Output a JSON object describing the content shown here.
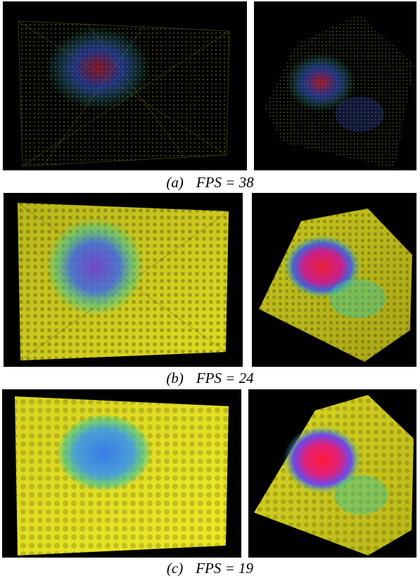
{
  "figure": {
    "rows": [
      {
        "id": "a",
        "tag": "(a)",
        "metric": "FPS = 38",
        "fps": 38,
        "render_style": "points"
      },
      {
        "id": "b",
        "tag": "(b)",
        "metric": "FPS = 24",
        "fps": 24,
        "render_style": "small-spheres"
      },
      {
        "id": "c",
        "tag": "(c)",
        "metric": "FPS = 19",
        "fps": 19,
        "render_style": "large-spheres"
      }
    ],
    "colors": {
      "background": "#000000",
      "volume": "#d4d21e",
      "cool": "#3a5ae8",
      "hot": "#e8203a",
      "transition": "#38c8a0"
    }
  }
}
